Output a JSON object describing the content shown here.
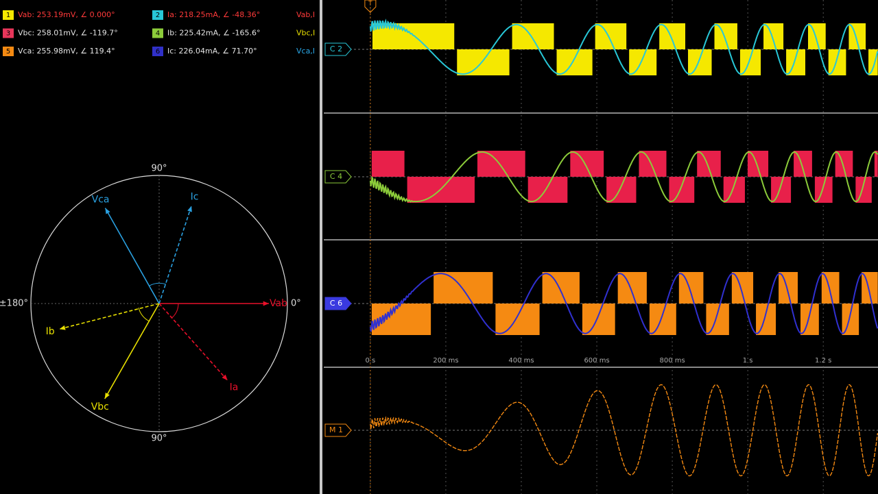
{
  "legend": [
    {
      "box": "1",
      "text": "Vab: 253.19mV, ∠ 0.000°",
      "color": "#ff3a3a",
      "box_color": "#f5e800"
    },
    {
      "box": "3",
      "text": "Vbc: 258.01mV, ∠ -119.7°",
      "color": "#e6e6e6",
      "box_color": "#e8365a"
    },
    {
      "box": "5",
      "text": "Vca: 255.98mV, ∠ 119.4°",
      "color": "#e6e6e6",
      "box_color": "#f58a12"
    },
    {
      "box": "2",
      "text": "Ia: 218.25mA, ∠ -48.36°",
      "color": "#ff3a3a",
      "box_color": "#28c8d8"
    },
    {
      "box": "4",
      "text": "Ib: 225.42mA, ∠ -165.6°",
      "color": "#e6e6e6",
      "box_color": "#8ccc3a"
    },
    {
      "box": "6",
      "text": "Ic: 226.04mA, ∠ 71.70°",
      "color": "#e6e6e6",
      "box_color": "#3030c8"
    }
  ],
  "truncated": [
    {
      "text": "Vab,I",
      "color": "#ff3a3a"
    },
    {
      "text": "Vbc,I",
      "color": "#e8e000"
    },
    {
      "text": "Vca,I",
      "color": "#2aa8e8"
    }
  ],
  "phasors": [
    {
      "name": "Vab",
      "angle": 0,
      "color": "#e8102a",
      "kind": "voltage"
    },
    {
      "name": "Ia",
      "angle": -48.36,
      "color": "#e8102a",
      "kind": "current"
    },
    {
      "name": "Vbc",
      "angle": -119.7,
      "color": "#e8e000",
      "kind": "voltage"
    },
    {
      "name": "Ib",
      "angle": -165.6,
      "color": "#e8e000",
      "kind": "current"
    },
    {
      "name": "Vca",
      "angle": 119.4,
      "color": "#2aa0e0",
      "kind": "voltage"
    },
    {
      "name": "Ic",
      "angle": 71.7,
      "color": "#2aa0e0",
      "kind": "current"
    }
  ],
  "phasor_axis_labels": {
    "top": "90°",
    "bottom": "90°",
    "left": "±180°",
    "right": "0°"
  },
  "scope": {
    "trigger": "T",
    "channels": [
      {
        "label": "C 2",
        "color": "#28c8d8",
        "block": "#f5e800",
        "wave": "#28c8d8"
      },
      {
        "label": "C 4",
        "color": "#8ccc3a",
        "block": "#e8204a",
        "wave": "#8ccc3a"
      },
      {
        "label": "C 6",
        "color": "#3a3ae0",
        "block": "#f58a12",
        "wave": "#3030d0"
      },
      {
        "label": "M 1",
        "color": "#f58a12",
        "wave": "#f58a12"
      }
    ],
    "xlim": [
      -0.127,
      1.345
    ],
    "xticks": [
      {
        "value": 0,
        "label": "0 s"
      },
      {
        "value": 0.2,
        "label": "200 ms"
      },
      {
        "value": 0.4,
        "label": "400 ms"
      },
      {
        "value": 0.6,
        "label": "600 ms"
      },
      {
        "value": 0.8,
        "label": "800 ms"
      },
      {
        "value": 1,
        "label": "1 s"
      },
      {
        "value": 1.2,
        "label": "1.2 s"
      }
    ]
  }
}
